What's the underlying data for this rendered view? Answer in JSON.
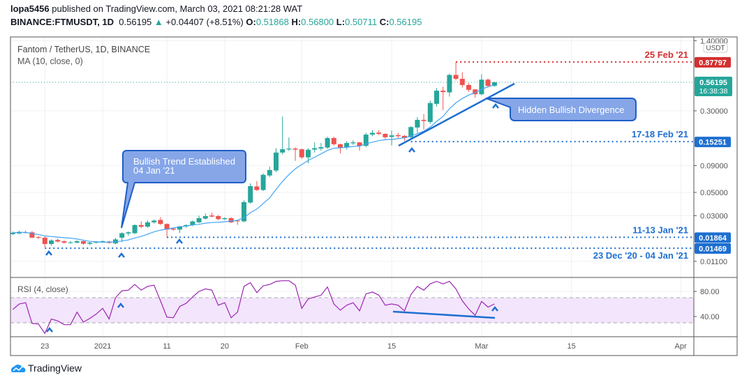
{
  "header": {
    "publisher": "lopa5456",
    "published_text": "published on TradingView.com, March 03, 2021 08:21:28 WAT",
    "symbol": "BINANCE:FTMUSDT, 1D",
    "last": "0.56195",
    "change": "+0.04407 (+8.51%)",
    "o_label": "O:",
    "o": "0.51868",
    "h_label": "H:",
    "h": "0.56800",
    "l_label": "L:",
    "l": "0.50711",
    "c_label": "C:",
    "c": "0.56195"
  },
  "legend": {
    "title": "Fantom / TetherUS, 1D, BINANCE",
    "ma": "MA (10, close, 0)",
    "rsi": "RSI (4, close)"
  },
  "colors": {
    "up": "#26a69a",
    "down": "#ef5350",
    "ma": "#42a5f5",
    "rsi": "#9c27b0",
    "annot": "#1e6fd0",
    "red_level": "#d32f2f"
  },
  "price_axis": {
    "currency": "USDT",
    "scale": "log",
    "ticks": [
      "1.40000",
      "0.30000",
      "0.09000",
      "0.05000",
      "0.03000",
      "0.01100"
    ],
    "last_price_tag": "0.56195",
    "countdown": "16:38:38"
  },
  "levels": [
    {
      "price": 0.87797,
      "tag": "0.87797",
      "label": "25 Feb '21",
      "color": "#d32f2f",
      "from": "2021-02-25"
    },
    {
      "price": 0.15251,
      "tag": "0.15251",
      "label": "17-18 Feb '21",
      "color": "#1e6fd0",
      "from": "2021-02-18"
    },
    {
      "price": 0.01864,
      "tag": "0.01864",
      "label": "11-13 Jan '21",
      "color": "#1e6fd0",
      "from": "2021-01-11"
    },
    {
      "price": 0.01469,
      "tag": "0.01469",
      "label": "23 Dec '20 - 04 Jan '21",
      "color": "#1e6fd0",
      "from": "2020-12-23"
    }
  ],
  "callouts": {
    "bullish_trend": [
      "Bullish Trend Established",
      "04 Jan '21"
    ],
    "hidden_divergence": "Hidden Bullish Divergence"
  },
  "rsi_axis": {
    "ticks": [
      "80.00",
      "40.00"
    ],
    "band": [
      30,
      70
    ]
  },
  "time_axis": [
    {
      "label": "23",
      "date": "2020-12-23"
    },
    {
      "label": "2021",
      "date": "2021-01-01"
    },
    {
      "label": "11",
      "date": "2021-01-11"
    },
    {
      "label": "20",
      "date": "2021-01-20"
    },
    {
      "label": "Feb",
      "date": "2021-02-01"
    },
    {
      "label": "15",
      "date": "2021-02-15"
    },
    {
      "label": "Mar",
      "date": "2021-03-01"
    },
    {
      "label": "15",
      "date": "2021-03-15"
    },
    {
      "label": "Apr",
      "date": "2021-04-01"
    }
  ],
  "footer": {
    "brand": "TradingView"
  },
  "chart_data": {
    "type": "candlestick",
    "first_date": "2020-12-18",
    "ohlc": [
      [
        0.02,
        0.0212,
        0.0196,
        0.0206
      ],
      [
        0.0203,
        0.0215,
        0.02,
        0.021
      ],
      [
        0.0206,
        0.0216,
        0.0203,
        0.0208
      ],
      [
        0.0208,
        0.0214,
        0.0183,
        0.0185
      ],
      [
        0.0187,
        0.0192,
        0.018,
        0.0184
      ],
      [
        0.0185,
        0.019,
        0.015,
        0.0161
      ],
      [
        0.0161,
        0.0178,
        0.0155,
        0.0174
      ],
      [
        0.0176,
        0.0181,
        0.0166,
        0.017
      ],
      [
        0.0171,
        0.0174,
        0.0162,
        0.0166
      ],
      [
        0.0166,
        0.0172,
        0.0162,
        0.0167
      ],
      [
        0.0166,
        0.0175,
        0.0163,
        0.0171
      ],
      [
        0.0171,
        0.0174,
        0.0158,
        0.0162
      ],
      [
        0.0162,
        0.0169,
        0.0157,
        0.0166
      ],
      [
        0.0166,
        0.0171,
        0.0163,
        0.0168
      ],
      [
        0.0168,
        0.0174,
        0.0165,
        0.0171
      ],
      [
        0.017,
        0.0173,
        0.0162,
        0.0165
      ],
      [
        0.0163,
        0.0184,
        0.016,
        0.0178
      ],
      [
        0.0185,
        0.0208,
        0.0168,
        0.0204
      ],
      [
        0.0203,
        0.0212,
        0.0193,
        0.0208
      ],
      [
        0.0204,
        0.0248,
        0.02,
        0.0244
      ],
      [
        0.0244,
        0.0265,
        0.0228,
        0.0235
      ],
      [
        0.0236,
        0.027,
        0.023,
        0.0259
      ],
      [
        0.0259,
        0.0275,
        0.0252,
        0.0269
      ],
      [
        0.0273,
        0.029,
        0.0245,
        0.025
      ],
      [
        0.025,
        0.0253,
        0.0188,
        0.0221
      ],
      [
        0.0226,
        0.023,
        0.0215,
        0.0221
      ],
      [
        0.0221,
        0.024,
        0.0205,
        0.0237
      ],
      [
        0.0237,
        0.0248,
        0.023,
        0.0244
      ],
      [
        0.0244,
        0.027,
        0.0238,
        0.0264
      ],
      [
        0.0259,
        0.03,
        0.0255,
        0.0284
      ],
      [
        0.0281,
        0.0315,
        0.0275,
        0.0297
      ],
      [
        0.0301,
        0.032,
        0.029,
        0.0294
      ],
      [
        0.0297,
        0.0305,
        0.027,
        0.0278
      ],
      [
        0.0278,
        0.029,
        0.0272,
        0.0284
      ],
      [
        0.0284,
        0.029,
        0.0255,
        0.0259
      ],
      [
        0.0269,
        0.0275,
        0.0245,
        0.0265
      ],
      [
        0.0265,
        0.042,
        0.026,
        0.0404
      ],
      [
        0.04,
        0.061,
        0.039,
        0.0574
      ],
      [
        0.057,
        0.064,
        0.0515,
        0.0527
      ],
      [
        0.0527,
        0.076,
        0.0515,
        0.0736
      ],
      [
        0.0725,
        0.088,
        0.07,
        0.0818
      ],
      [
        0.081,
        0.132,
        0.078,
        0.12
      ],
      [
        0.12,
        0.265,
        0.115,
        0.129
      ],
      [
        0.1285,
        0.167,
        0.124,
        0.131
      ],
      [
        0.131,
        0.134,
        0.1,
        0.128
      ],
      [
        0.129,
        0.131,
        0.104,
        0.108
      ],
      [
        0.108,
        0.132,
        0.095,
        0.1275
      ],
      [
        0.128,
        0.15,
        0.12,
        0.132
      ],
      [
        0.131,
        0.148,
        0.125,
        0.135
      ],
      [
        0.134,
        0.17,
        0.13,
        0.165
      ],
      [
        0.165,
        0.17,
        0.14,
        0.144
      ],
      [
        0.144,
        0.146,
        0.118,
        0.133
      ],
      [
        0.134,
        0.154,
        0.128,
        0.148
      ],
      [
        0.147,
        0.157,
        0.142,
        0.15
      ],
      [
        0.15,
        0.151,
        0.125,
        0.139
      ],
      [
        0.139,
        0.185,
        0.135,
        0.178
      ],
      [
        0.178,
        0.196,
        0.172,
        0.185
      ],
      [
        0.186,
        0.196,
        0.176,
        0.181
      ],
      [
        0.181,
        0.183,
        0.162,
        0.168
      ],
      [
        0.169,
        0.195,
        0.14,
        0.175
      ],
      [
        0.176,
        0.185,
        0.165,
        0.172
      ],
      [
        0.173,
        0.176,
        0.155,
        0.165
      ],
      [
        0.168,
        0.215,
        0.162,
        0.21
      ],
      [
        0.208,
        0.262,
        0.185,
        0.246
      ],
      [
        0.246,
        0.28,
        0.199,
        0.24
      ],
      [
        0.235,
        0.375,
        0.225,
        0.356
      ],
      [
        0.35,
        0.495,
        0.33,
        0.467
      ],
      [
        0.467,
        0.51,
        0.306,
        0.453
      ],
      [
        0.45,
        0.68,
        0.41,
        0.66
      ],
      [
        0.66,
        0.87797,
        0.585,
        0.606
      ],
      [
        0.606,
        0.7,
        0.5,
        0.529
      ],
      [
        0.529,
        0.55,
        0.455,
        0.476
      ],
      [
        0.48,
        0.485,
        0.4,
        0.432
      ],
      [
        0.432,
        0.67,
        0.422,
        0.595
      ],
      [
        0.595,
        0.61,
        0.5,
        0.51868
      ],
      [
        0.51868,
        0.568,
        0.50711,
        0.56195
      ]
    ],
    "rsi": [
      51,
      60,
      62,
      29,
      28,
      13,
      36,
      33,
      27,
      27,
      47,
      31,
      37,
      44,
      53,
      36,
      70,
      81,
      82,
      91,
      82,
      88,
      90,
      65,
      39,
      38,
      56,
      61,
      71,
      80,
      84,
      82,
      58,
      62,
      38,
      47,
      88,
      94,
      78,
      89,
      91,
      96,
      97,
      97,
      90,
      53,
      68,
      71,
      74,
      87,
      60,
      50,
      58,
      62,
      49,
      76,
      79,
      74,
      58,
      60,
      58,
      49,
      75,
      88,
      82,
      92,
      96,
      92,
      96,
      84,
      65,
      52,
      42,
      64,
      55,
      60
    ],
    "ma_period": 10,
    "rsi_period": 4
  }
}
